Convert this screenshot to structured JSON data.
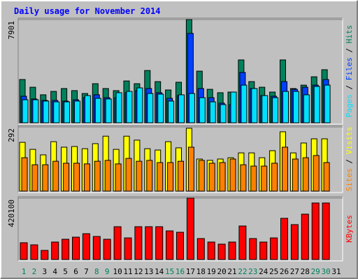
{
  "title": "Daily usage for November 2014",
  "chart_data": [
    {
      "type": "bar",
      "ylim": [
        0,
        7901
      ],
      "yticks": [
        7901
      ],
      "series": [
        {
          "name": "Hits",
          "color": "#00805c",
          "values": [
            3310,
            2720,
            2140,
            2400,
            2620,
            2460,
            2240,
            2990,
            2620,
            2460,
            3200,
            2990,
            4000,
            3150,
            2510,
            3100,
            7901,
            3950,
            2560,
            2300,
            2350,
            4810,
            3150,
            2720,
            2350,
            4810,
            2620,
            2880,
            3520,
            4060,
            0
          ]
        },
        {
          "name": "Files",
          "color": "#0040ff",
          "values": [
            2030,
            1820,
            1710,
            1710,
            1660,
            1760,
            1920,
            2140,
            1920,
            1920,
            2300,
            2460,
            2620,
            2300,
            1870,
            2080,
            6840,
            2620,
            1920,
            1500,
            1390,
            3850,
            2620,
            2080,
            2030,
            3150,
            2560,
            2720,
            2880,
            3310,
            0
          ]
        },
        {
          "name": "Pages",
          "color": "#00e0ff",
          "values": [
            1760,
            1760,
            1660,
            1600,
            1600,
            1660,
            2080,
            1870,
            1820,
            2300,
            2400,
            2670,
            2240,
            2190,
            1660,
            2140,
            2240,
            1920,
            1600,
            1390,
            2350,
            2880,
            2620,
            2080,
            1920,
            2400,
            2400,
            2140,
            2780,
            2880,
            0
          ]
        }
      ]
    },
    {
      "type": "bar",
      "ylim": [
        0,
        292
      ],
      "yticks": [
        292
      ],
      "series": [
        {
          "name": "Visits",
          "color": "#ffff00",
          "values": [
            222,
            190,
            165,
            225,
            200,
            203,
            193,
            216,
            250,
            190,
            250,
            232,
            193,
            187,
            225,
            197,
            286,
            146,
            140,
            146,
            152,
            174,
            174,
            152,
            184,
            270,
            174,
            219,
            238,
            238,
            0
          ]
        },
        {
          "name": "Sites",
          "color": "#ff8000",
          "values": [
            152,
            120,
            120,
            136,
            127,
            127,
            124,
            136,
            140,
            124,
            149,
            136,
            140,
            130,
            130,
            136,
            200,
            140,
            127,
            130,
            146,
            120,
            114,
            114,
            127,
            200,
            146,
            152,
            162,
            130,
            0
          ]
        }
      ]
    },
    {
      "type": "bar",
      "ylim": [
        0,
        420100
      ],
      "yticks": [
        420100
      ],
      "categories": [
        "1",
        "2",
        "3",
        "4",
        "5",
        "6",
        "7",
        "8",
        "9",
        "10",
        "11",
        "12",
        "13",
        "14",
        "15",
        "16",
        "17",
        "18",
        "19",
        "20",
        "21",
        "22",
        "23",
        "24",
        "25",
        "26",
        "27",
        "28",
        "29",
        "30",
        "31"
      ],
      "category_colors": [
        "#00805c",
        "#00805c",
        "#000000",
        "#000000",
        "#000000",
        "#000000",
        "#000000",
        "#00805c",
        "#00805c",
        "#000000",
        "#000000",
        "#000000",
        "#000000",
        "#000000",
        "#00805c",
        "#00805c",
        "#000000",
        "#000000",
        "#000000",
        "#000000",
        "#000000",
        "#00805c",
        "#00805c",
        "#000000",
        "#000000",
        "#000000",
        "#000000",
        "#000000",
        "#00805c",
        "#00805c",
        "#000000"
      ],
      "series": [
        {
          "name": "KBytes",
          "color": "#ff0000",
          "values": [
            114600,
            100300,
            62100,
            119400,
            138400,
            152800,
            176600,
            157500,
            138400,
            224400,
            147700,
            224400,
            224400,
            224400,
            195700,
            186200,
            420100,
            143200,
            119400,
            105000,
            119400,
            229200,
            143200,
            119400,
            147700,
            281700,
            238700,
            310300,
            386700,
            386700,
            0
          ]
        }
      ]
    }
  ]
}
